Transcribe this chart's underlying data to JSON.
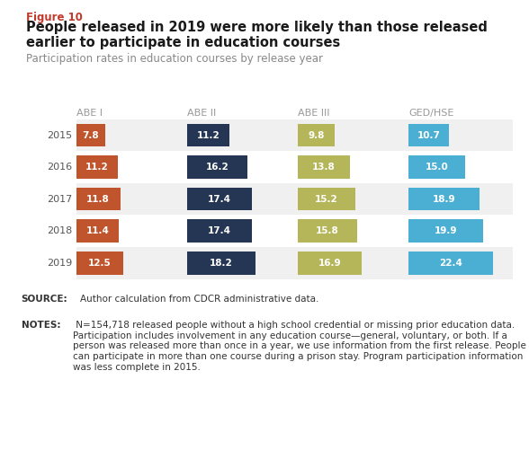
{
  "figure_label": "Figure 10",
  "title_line1": "People released in 2019 were more likely than those released",
  "title_line2": "earlier to participate in education courses",
  "subtitle": "Participation rates in education courses by release year",
  "years": [
    "2015",
    "2016",
    "2017",
    "2018",
    "2019"
  ],
  "categories": [
    "ABE I",
    "ABE II",
    "ABE III",
    "GED/HSE"
  ],
  "values": {
    "ABE I": [
      7.8,
      11.2,
      11.8,
      11.4,
      12.5
    ],
    "ABE II": [
      11.2,
      16.2,
      17.4,
      17.4,
      18.2
    ],
    "ABE III": [
      9.8,
      13.8,
      15.2,
      15.8,
      16.9
    ],
    "GED/HSE": [
      10.7,
      15.0,
      18.9,
      19.9,
      22.4
    ]
  },
  "colors": {
    "ABE I": "#c0542c",
    "ABE II": "#253554",
    "ABE III": "#b5b55a",
    "GED/HSE": "#4bafd4"
  },
  "max_val": 25,
  "bg_color": "#ffffff",
  "note_bg_color": "#e6e6e6",
  "figure_label_color": "#c0392b",
  "title_color": "#1a1a1a",
  "subtitle_color": "#888888",
  "year_label_color": "#555555",
  "cat_label_color": "#999999",
  "row_bg_color": "#f0f0f0",
  "note_text_color": "#333333",
  "source_line": "Author calculation from CDCR administrative data.",
  "notes_line": " N=154,718 released people without a high school credential or missing prior education data. Participation includes involvement in any education course—general, voluntary, or both. If a person was released more than once in a year, we use information from the first release. People can participate in more than one course during a prison stay. Program participation information was less complete in 2015."
}
